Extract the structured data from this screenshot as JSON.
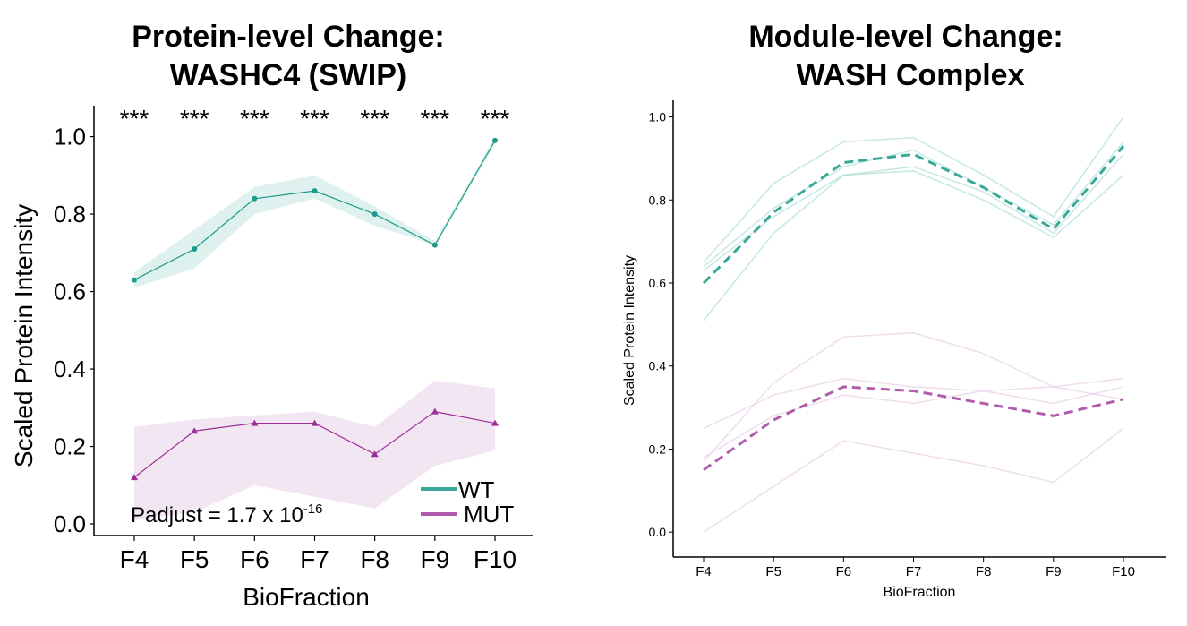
{
  "panels": {
    "left": {
      "title_line1": "Protein-level Change:",
      "title_line2": "WASHC4 (SWIP)",
      "significance_marker": "***",
      "padjust_prefix": "Padjust = 1.7 x 10",
      "padjust_exponent": "-16",
      "legend_wt": "WT",
      "legend_mut": "MUT"
    },
    "right": {
      "title_line1": "Module-level Change:",
      "title_line2": "WASH Complex"
    }
  },
  "colors": {
    "wt": "#1b9a89",
    "wt_band": "#dff1ee",
    "wt_module": "#9fd9d0",
    "wt_mean": "#3aa898",
    "mut": "#9b2f96",
    "mut_band": "#f3e6f3",
    "mut_module": "#e6c6e4",
    "mut_mean": "#b05cac"
  },
  "chart_data": [
    {
      "type": "line",
      "title": "Protein-level Change: WASHC4 (SWIP)",
      "xlabel": "BioFraction",
      "ylabel": "Scaled Protein Intensity",
      "categories": [
        "F4",
        "F5",
        "F6",
        "F7",
        "F8",
        "F9",
        "F10"
      ],
      "ylim": [
        -0.03,
        1.08
      ],
      "yticks": [
        "0.0",
        "0.2",
        "0.4",
        "0.6",
        "0.8",
        "1.0"
      ],
      "grid": false,
      "legend": "bottom-right",
      "significance": [
        "***",
        "***",
        "***",
        "***",
        "***",
        "***",
        "***"
      ],
      "series": [
        {
          "name": "WT",
          "values": [
            0.63,
            0.71,
            0.84,
            0.86,
            0.8,
            0.72,
            0.99
          ],
          "band_low": [
            0.61,
            0.66,
            0.8,
            0.84,
            0.77,
            0.72,
            0.98
          ],
          "band_high": [
            0.65,
            0.76,
            0.87,
            0.9,
            0.82,
            0.73,
            1.0
          ],
          "marker": "circle"
        },
        {
          "name": "MUT",
          "values": [
            0.12,
            0.24,
            0.26,
            0.26,
            0.18,
            0.29,
            0.26
          ],
          "band_low": [
            0.01,
            0.03,
            0.1,
            0.07,
            0.04,
            0.15,
            0.19
          ],
          "band_high": [
            0.25,
            0.27,
            0.28,
            0.29,
            0.25,
            0.37,
            0.35
          ],
          "marker": "triangle"
        }
      ]
    },
    {
      "type": "line",
      "title": "Module-level Change: WASH Complex",
      "xlabel": "BioFraction",
      "ylabel": "Scaled Protein Intensity",
      "categories": [
        "F4",
        "F5",
        "F6",
        "F7",
        "F8",
        "F9",
        "F10"
      ],
      "ylim": [
        -0.06,
        1.04
      ],
      "yticks": [
        "0.0",
        "0.2",
        "0.4",
        "0.6",
        "0.8",
        "1.0"
      ],
      "grid": false,
      "series": [
        {
          "group": "WT",
          "style": "thin",
          "values": [
            0.65,
            0.84,
            0.94,
            0.95,
            0.86,
            0.76,
            1.0
          ]
        },
        {
          "group": "WT",
          "style": "thin",
          "values": [
            0.64,
            0.78,
            0.88,
            0.92,
            0.83,
            0.74,
            0.94
          ]
        },
        {
          "group": "WT",
          "style": "thin",
          "values": [
            0.63,
            0.76,
            0.86,
            0.88,
            0.82,
            0.72,
            0.91
          ]
        },
        {
          "group": "WT",
          "style": "thin",
          "values": [
            0.51,
            0.72,
            0.86,
            0.87,
            0.8,
            0.71,
            0.86
          ]
        },
        {
          "group": "WT",
          "style": "mean",
          "values": [
            0.6,
            0.77,
            0.89,
            0.91,
            0.83,
            0.73,
            0.93
          ]
        },
        {
          "group": "MUT",
          "style": "thin",
          "values": [
            0.17,
            0.36,
            0.47,
            0.48,
            0.43,
            0.35,
            0.37
          ]
        },
        {
          "group": "MUT",
          "style": "thin",
          "values": [
            0.25,
            0.33,
            0.37,
            0.35,
            0.34,
            0.35,
            0.32
          ]
        },
        {
          "group": "MUT",
          "style": "thin",
          "values": [
            0.18,
            0.28,
            0.33,
            0.31,
            0.34,
            0.31,
            0.35
          ]
        },
        {
          "group": "MUT",
          "style": "thin",
          "values": [
            0.0,
            0.11,
            0.22,
            0.19,
            0.16,
            0.12,
            0.25
          ]
        },
        {
          "group": "MUT",
          "style": "mean",
          "values": [
            0.15,
            0.27,
            0.35,
            0.34,
            0.31,
            0.28,
            0.32
          ]
        }
      ]
    }
  ]
}
